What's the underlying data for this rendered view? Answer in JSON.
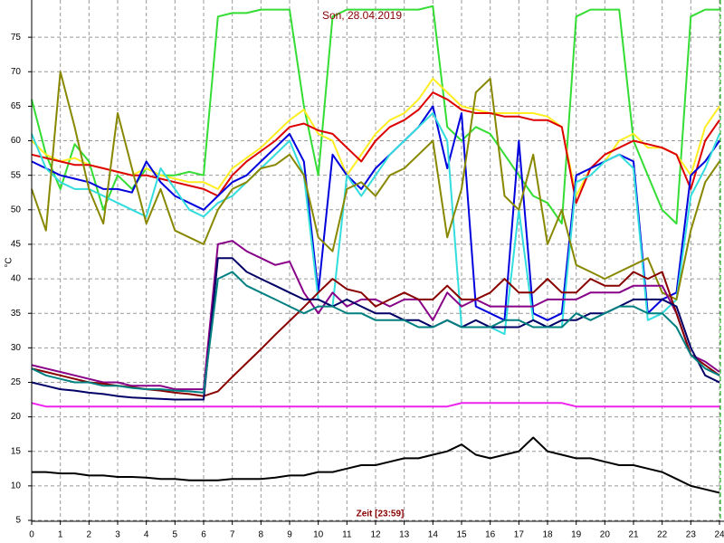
{
  "chart_data": {
    "type": "line",
    "title": "Son, 28.04.2019",
    "x_label": "Zeit [23:59]",
    "y_label": "°C",
    "x": [
      0,
      0.5,
      1,
      1.5,
      2,
      2.5,
      3,
      3.5,
      4,
      4.5,
      5,
      5.5,
      6,
      6.5,
      7,
      7.5,
      8,
      8.5,
      9,
      9.5,
      10,
      10.5,
      11,
      11.5,
      12,
      12.5,
      13,
      13.5,
      14,
      14.5,
      15,
      15.5,
      16,
      16.5,
      17,
      17.5,
      18,
      18.5,
      19,
      19.5,
      20,
      20.5,
      21,
      21.5,
      22,
      22.5,
      23,
      23.5,
      24
    ],
    "xlim": [
      0,
      24
    ],
    "xticks": [
      0,
      1,
      2,
      3,
      4,
      5,
      6,
      7,
      8,
      9,
      10,
      11,
      12,
      13,
      14,
      15,
      16,
      17,
      18,
      19,
      20,
      21,
      22,
      23,
      24
    ],
    "ylim": [
      5,
      80
    ],
    "yticks": [
      5,
      10,
      15,
      20,
      25,
      30,
      35,
      40,
      45,
      50,
      55,
      60,
      65,
      70,
      75
    ],
    "grid": true,
    "series": [
      {
        "color": "#33dd33",
        "values": [
          66,
          58,
          53,
          59.5,
          57,
          50,
          55,
          53,
          56,
          55,
          55,
          55.5,
          55,
          78,
          78.5,
          78.5,
          79,
          79,
          79,
          65,
          55,
          78,
          79,
          79,
          79,
          79,
          79,
          79,
          79.5,
          62,
          60,
          62,
          61,
          58,
          55,
          52,
          51,
          48,
          78,
          79,
          79,
          79,
          60,
          55,
          50,
          48,
          78,
          79,
          79
        ]
      },
      {
        "color": "#ffee22",
        "values": [
          60,
          58,
          57,
          57.5,
          56.5,
          56,
          55.5,
          55,
          56,
          55,
          54.5,
          54,
          54,
          53,
          56,
          57.5,
          59,
          61,
          63,
          64.5,
          61,
          60,
          55,
          58,
          61,
          63,
          64,
          66,
          69,
          67,
          65,
          64.5,
          64,
          64,
          64,
          64,
          63.5,
          62,
          52,
          56,
          57,
          60,
          61,
          59,
          59,
          58,
          55,
          62,
          65
        ]
      },
      {
        "color": "#dd0000",
        "values": [
          58,
          57.5,
          57,
          56.5,
          56.5,
          56,
          55.5,
          55,
          55,
          54.5,
          54,
          53.5,
          53,
          52,
          55,
          57,
          58.5,
          60,
          62,
          62.5,
          61.5,
          61,
          59,
          57,
          60,
          62,
          63,
          64.5,
          67,
          66,
          64.5,
          64,
          64,
          63.5,
          63.5,
          63,
          63,
          62,
          51,
          56,
          58,
          59,
          60,
          59.5,
          59,
          58,
          53,
          60,
          63
        ]
      },
      {
        "color": "#0000dd",
        "values": [
          57,
          56,
          55,
          54.5,
          54,
          53,
          53,
          52.5,
          57,
          54,
          52,
          51,
          50,
          52,
          54,
          55,
          57,
          59,
          61,
          57,
          38,
          58,
          55,
          53,
          56,
          58,
          60,
          62,
          65,
          56,
          64,
          36,
          35,
          34,
          60,
          35,
          34,
          35,
          55,
          56,
          57,
          58,
          57,
          35,
          37,
          38,
          55,
          57,
          60
        ]
      },
      {
        "color": "#33dddd",
        "values": [
          61,
          56,
          54,
          53,
          53,
          52,
          51,
          50,
          49,
          56,
          53,
          50,
          49,
          51,
          52,
          54,
          56,
          58,
          60,
          55,
          37,
          36,
          55,
          52,
          55,
          58,
          60,
          62,
          64,
          60,
          33,
          33,
          33,
          32,
          50,
          34,
          33,
          33,
          54,
          55,
          57,
          58,
          56,
          34,
          35,
          37,
          52,
          56,
          61
        ]
      },
      {
        "color": "#888800",
        "values": [
          53,
          47,
          70,
          62,
          53,
          48,
          64,
          56,
          48,
          53,
          47,
          46,
          45,
          50,
          53,
          54,
          56,
          56.5,
          58,
          55,
          46,
          44,
          53,
          54,
          52,
          55,
          56,
          58,
          60,
          46,
          53,
          67,
          69,
          52,
          50,
          58,
          45,
          50,
          42,
          41,
          40,
          41,
          42,
          43,
          38,
          37,
          47,
          54,
          57
        ]
      },
      {
        "color": "#880088",
        "values": [
          27.5,
          27,
          26.5,
          26,
          25.5,
          25,
          25,
          24.5,
          24.5,
          24.5,
          24,
          24,
          24,
          45,
          45.5,
          44,
          43,
          42,
          42.5,
          38,
          35,
          38,
          36,
          37,
          37,
          36,
          37,
          37,
          34,
          38,
          36,
          37,
          36,
          36,
          36,
          36,
          37,
          37,
          37,
          38,
          38,
          38,
          39,
          39,
          39,
          35,
          29,
          28,
          26.5
        ]
      },
      {
        "color": "#880000",
        "values": [
          27,
          26.5,
          26,
          25.5,
          25,
          24.8,
          24.5,
          24.3,
          24,
          23.8,
          23.5,
          23.3,
          23,
          23.7,
          25.8,
          27.8,
          29.8,
          31.9,
          33.9,
          35.9,
          38,
          40,
          38.5,
          38,
          36,
          37,
          38,
          37,
          37,
          39,
          37,
          37,
          38,
          40,
          38,
          38,
          40,
          38,
          38,
          40,
          39,
          39,
          41,
          40,
          41,
          35,
          29,
          27.5,
          26
        ]
      },
      {
        "color": "#000066",
        "values": [
          25,
          24.5,
          24,
          23.8,
          23.5,
          23.3,
          23,
          22.8,
          22.7,
          22.6,
          22.5,
          22.5,
          22.5,
          43,
          43,
          41,
          40,
          39,
          38,
          37,
          37,
          36,
          37,
          36,
          35,
          35,
          34,
          34,
          33,
          34,
          33,
          34,
          33,
          33,
          33,
          34,
          33,
          34,
          34,
          35,
          35,
          36,
          37,
          37,
          37,
          36,
          30,
          26,
          25
        ]
      },
      {
        "color": "#008080",
        "values": [
          27,
          26,
          25.5,
          25,
          25,
          24.5,
          24.5,
          24.2,
          24,
          24,
          23.8,
          23.7,
          23.5,
          40,
          41,
          39,
          38,
          37,
          36,
          35,
          36,
          36,
          35,
          35,
          34,
          34,
          34,
          33,
          33,
          34,
          33,
          33,
          33,
          34,
          34,
          33,
          33,
          33,
          35,
          34,
          35,
          36,
          36,
          35,
          35,
          33,
          29,
          27,
          26
        ]
      },
      {
        "color": "#ee22ee",
        "values": [
          22,
          21.5,
          21.5,
          21.5,
          21.5,
          21.5,
          21.5,
          21.5,
          21.5,
          21.5,
          21.5,
          21.5,
          21.5,
          21.5,
          21.5,
          21.5,
          21.5,
          21.5,
          21.5,
          21.5,
          21.5,
          21.5,
          21.5,
          21.5,
          21.5,
          21.5,
          21.5,
          21.5,
          21.5,
          21.5,
          22,
          22,
          22,
          22,
          22,
          22,
          22,
          22,
          21.5,
          21.5,
          21.5,
          21.5,
          21.5,
          21.5,
          21.5,
          21.5,
          21.5,
          21.5,
          21.5
        ]
      },
      {
        "color": "#000000",
        "values": [
          12,
          12,
          11.8,
          11.8,
          11.5,
          11.5,
          11.3,
          11.3,
          11.2,
          11,
          11,
          10.8,
          10.8,
          10.8,
          11,
          11,
          11,
          11.2,
          11.5,
          11.5,
          12,
          12,
          12.5,
          13,
          13,
          13.5,
          14,
          14,
          14.5,
          15,
          16,
          14.5,
          14,
          14.5,
          15,
          17,
          15,
          14.5,
          14,
          14,
          13.5,
          13,
          13,
          12.5,
          12,
          11,
          10,
          9.5,
          9
        ]
      }
    ]
  }
}
